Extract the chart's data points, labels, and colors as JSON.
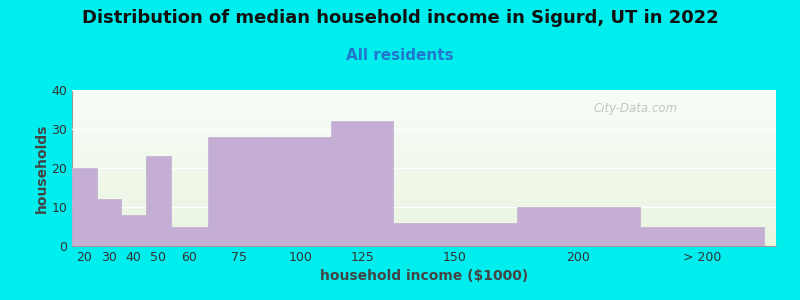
{
  "title": "Distribution of median household income in Sigurd, UT in 2022",
  "subtitle": "All residents",
  "xlabel": "household income ($1000)",
  "ylabel": "households",
  "background_color": "#00EEEE",
  "plot_bg_color_top": "#eaf5e0",
  "plot_bg_color_bottom": "#f8fcf8",
  "bar_color": "#c4aed4",
  "bar_edge_color": "#c4aed4",
  "values": [
    20,
    12,
    8,
    23,
    5,
    28,
    28,
    32,
    6,
    10,
    5
  ],
  "bar_lefts": [
    10,
    20,
    30,
    40,
    50,
    65,
    90,
    115,
    140,
    190,
    240
  ],
  "bar_widths": [
    10,
    10,
    10,
    10,
    15,
    25,
    25,
    25,
    50,
    50,
    50
  ],
  "xlim": [
    10,
    295
  ],
  "ylim": [
    0,
    40
  ],
  "yticks": [
    0,
    10,
    20,
    30,
    40
  ],
  "xtick_positions": [
    15,
    25,
    35,
    45,
    57.5,
    77.5,
    102.5,
    127.5,
    165,
    215,
    265
  ],
  "xtick_labels": [
    "20",
    "30",
    "40",
    "50",
    "60",
    "75",
    "100",
    "125",
    "150",
    "200",
    "> 200"
  ],
  "title_fontsize": 13,
  "subtitle_fontsize": 11,
  "axis_label_fontsize": 10,
  "tick_fontsize": 9,
  "watermark_text": "City-Data.com"
}
